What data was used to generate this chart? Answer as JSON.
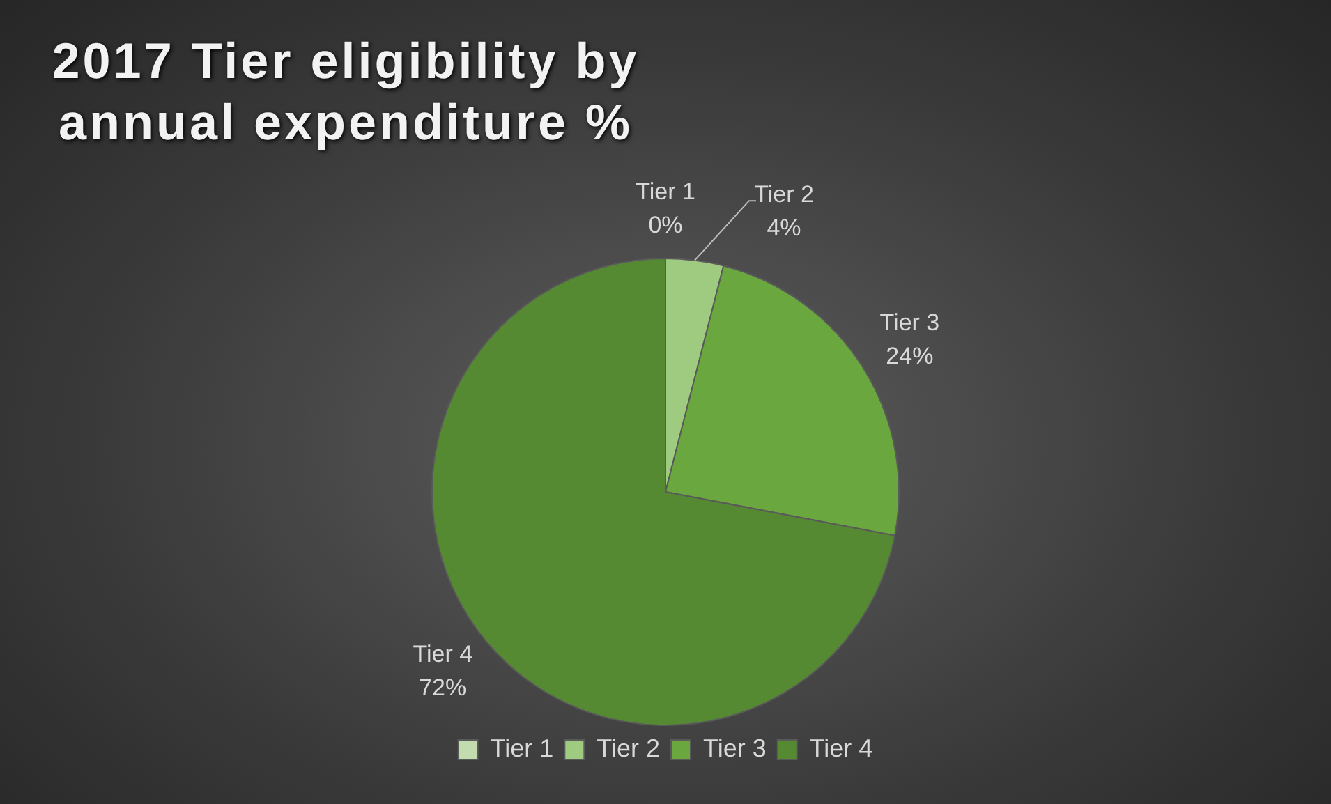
{
  "chart_data": {
    "type": "pie",
    "title": "2017 Tier eligibility by annual expenditure %",
    "categories": [
      "Tier 1",
      "Tier 2",
      "Tier 3",
      "Tier 4"
    ],
    "values": [
      0,
      4,
      24,
      72
    ],
    "value_labels": [
      "0%",
      "4%",
      "24%",
      "72%"
    ],
    "colors": [
      "#c3dcaf",
      "#9fcb80",
      "#6aa83f",
      "#558a33"
    ],
    "legend": "bottom"
  }
}
